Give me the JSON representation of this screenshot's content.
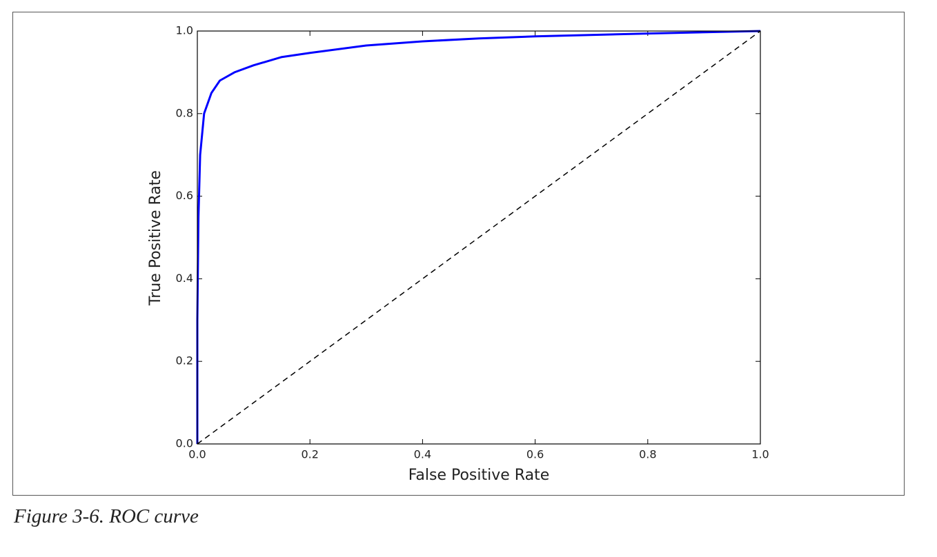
{
  "chart_data": {
    "type": "line",
    "xlabel": "False Positive Rate",
    "ylabel": "True Positive Rate",
    "xlim": [
      0,
      1
    ],
    "ylim": [
      0,
      1
    ],
    "xticks": [
      {
        "value": 0,
        "label": "0.0"
      },
      0.2,
      0.4,
      0.6,
      0.8,
      {
        "value": 1,
        "label": "1.0"
      }
    ],
    "yticks": [
      {
        "value": 0,
        "label": "0.0"
      },
      0.2,
      0.4,
      0.6,
      0.8,
      {
        "value": 1,
        "label": "1.0"
      }
    ],
    "grid": false,
    "series": [
      {
        "color": "#0000ff",
        "linestyle": "solid",
        "x": [
          0,
          0,
          0.002,
          0.005,
          0.012,
          0.025,
          0.04,
          0.066,
          0.1,
          0.15,
          0.2,
          0.3,
          0.4,
          0.5,
          0.6,
          0.8,
          1
        ],
        "values": [
          0,
          0.3,
          0.55,
          0.7,
          0.8,
          0.85,
          0.88,
          0.9,
          0.917,
          0.937,
          0.947,
          0.965,
          0.975,
          0.982,
          0.987,
          0.994,
          1
        ]
      },
      {
        "color": "#000000",
        "linestyle": "dashed",
        "x": [
          0,
          1
        ],
        "values": [
          0,
          1
        ]
      }
    ]
  },
  "caption": "Figure 3-6. ROC curve"
}
